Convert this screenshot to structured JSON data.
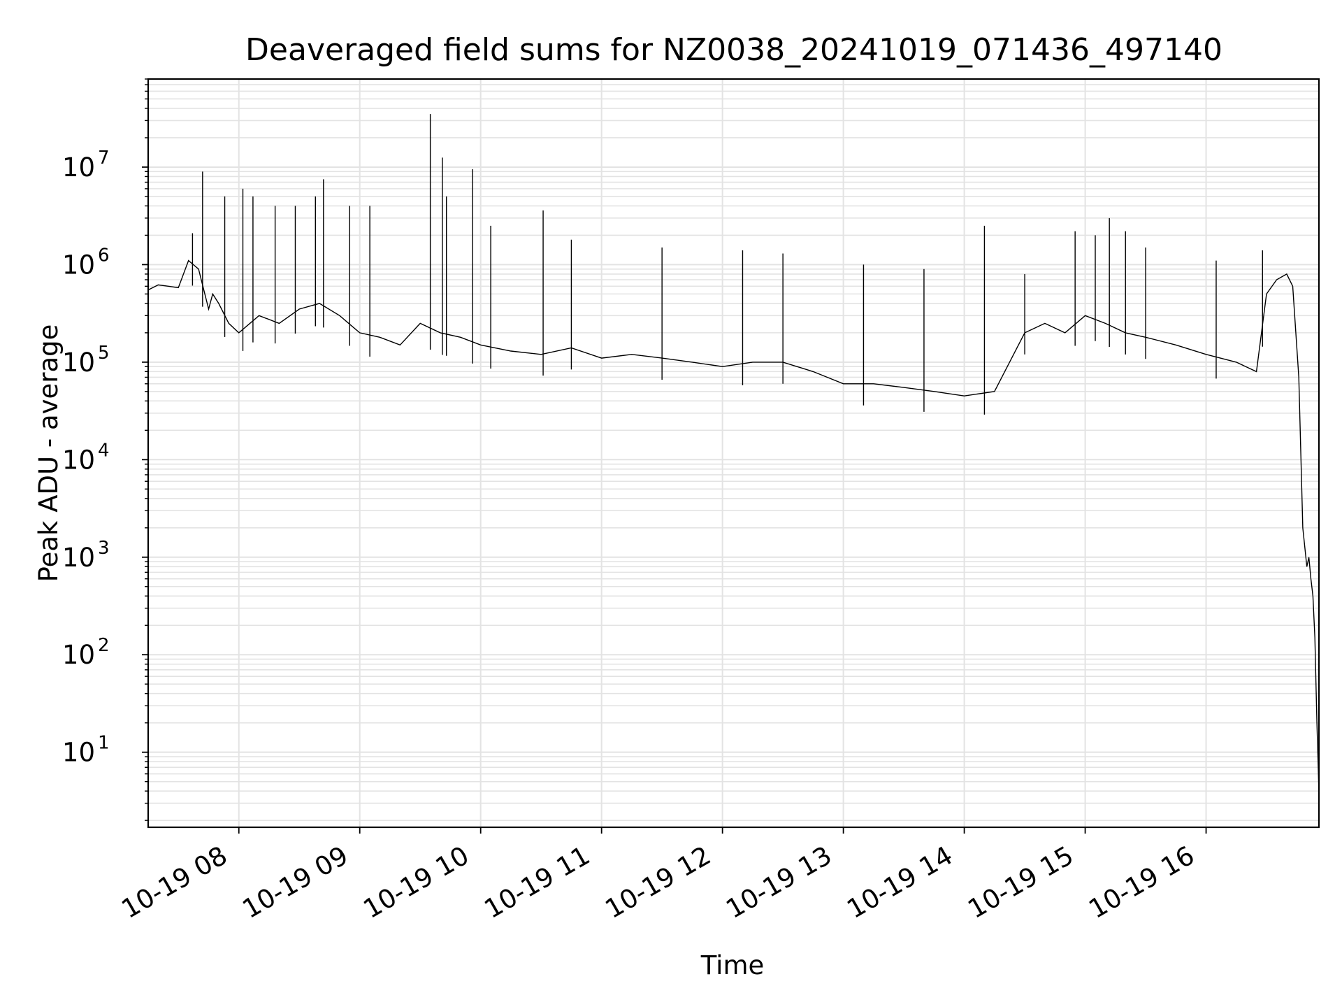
{
  "chart_data": {
    "type": "line",
    "title": "Deaveraged field sums for NZ0038_20241019_071436_497140",
    "xlabel": "Time",
    "ylabel": "Peak ADU - average",
    "y_scale": "log",
    "ylim": [
      1.7,
      80000000
    ],
    "xlim": [
      "2024-10-19 07:15",
      "2024-10-19 16:56"
    ],
    "grid": true,
    "series_color": "#000000",
    "x_ticks": [
      {
        "label": "10-19 08",
        "t": "2024-10-19 08:00"
      },
      {
        "label": "10-19 09",
        "t": "2024-10-19 09:00"
      },
      {
        "label": "10-19 10",
        "t": "2024-10-19 10:00"
      },
      {
        "label": "10-19 11",
        "t": "2024-10-19 11:00"
      },
      {
        "label": "10-19 12",
        "t": "2024-10-19 12:00"
      },
      {
        "label": "10-19 13",
        "t": "2024-10-19 13:00"
      },
      {
        "label": "10-19 14",
        "t": "2024-10-19 14:00"
      },
      {
        "label": "10-19 15",
        "t": "2024-10-19 15:00"
      },
      {
        "label": "10-19 16",
        "t": "2024-10-19 16:00"
      }
    ],
    "y_ticks": [
      {
        "base": "10",
        "exp": "1",
        "value": 10
      },
      {
        "base": "10",
        "exp": "2",
        "value": 100
      },
      {
        "base": "10",
        "exp": "3",
        "value": 1000
      },
      {
        "base": "10",
        "exp": "4",
        "value": 10000
      },
      {
        "base": "10",
        "exp": "5",
        "value": 100000
      },
      {
        "base": "10",
        "exp": "6",
        "value": 1000000
      },
      {
        "base": "10",
        "exp": "7",
        "value": 10000000
      }
    ],
    "series": [
      {
        "x": [
          "2024-10-19 07:15",
          "2024-10-19 07:20",
          "2024-10-19 07:25",
          "2024-10-19 07:30",
          "2024-10-19 07:35",
          "2024-10-19 07:40",
          "2024-10-19 07:45",
          "2024-10-19 07:47",
          "2024-10-19 07:50",
          "2024-10-19 07:55",
          "2024-10-19 08:00",
          "2024-10-19 08:10",
          "2024-10-19 08:20",
          "2024-10-19 08:30",
          "2024-10-19 08:40",
          "2024-10-19 08:50",
          "2024-10-19 09:00",
          "2024-10-19 09:10",
          "2024-10-19 09:20",
          "2024-10-19 09:30",
          "2024-10-19 09:40",
          "2024-10-19 09:50",
          "2024-10-19 10:00",
          "2024-10-19 10:15",
          "2024-10-19 10:30",
          "2024-10-19 10:45",
          "2024-10-19 11:00",
          "2024-10-19 11:15",
          "2024-10-19 11:30",
          "2024-10-19 11:45",
          "2024-10-19 12:00",
          "2024-10-19 12:15",
          "2024-10-19 12:30",
          "2024-10-19 12:45",
          "2024-10-19 13:00",
          "2024-10-19 13:15",
          "2024-10-19 13:30",
          "2024-10-19 13:45",
          "2024-10-19 14:00",
          "2024-10-19 14:15",
          "2024-10-19 14:30",
          "2024-10-19 14:40",
          "2024-10-19 14:50",
          "2024-10-19 15:00",
          "2024-10-19 15:10",
          "2024-10-19 15:20",
          "2024-10-19 15:30",
          "2024-10-19 15:45",
          "2024-10-19 16:00",
          "2024-10-19 16:15",
          "2024-10-19 16:25",
          "2024-10-19 16:30",
          "2024-10-19 16:35",
          "2024-10-19 16:40",
          "2024-10-19 16:43",
          "2024-10-19 16:46",
          "2024-10-19 16:48",
          "2024-10-19 16:50",
          "2024-10-19 16:51",
          "2024-10-19 16:52",
          "2024-10-19 16:53",
          "2024-10-19 16:54",
          "2024-10-19 16:55",
          "2024-10-19 16:56"
        ],
        "y": [
          550000,
          620000,
          600000,
          580000,
          1100000,
          900000,
          350000,
          500000,
          400000,
          250000,
          200000,
          300000,
          250000,
          350000,
          400000,
          300000,
          200000,
          180000,
          150000,
          250000,
          200000,
          180000,
          150000,
          130000,
          120000,
          140000,
          110000,
          120000,
          110000,
          100000,
          90000,
          100000,
          100000,
          80000,
          60000,
          60000,
          55000,
          50000,
          45000,
          50000,
          200000,
          250000,
          200000,
          300000,
          250000,
          200000,
          180000,
          150000,
          120000,
          100000,
          80000,
          500000,
          700000,
          800000,
          600000,
          70000,
          2000,
          800,
          1000,
          600,
          400,
          150,
          20,
          4
        ],
        "spikes": [
          {
            "t": "2024-10-19 07:37",
            "v": 2100000
          },
          {
            "t": "2024-10-19 07:42",
            "v": 9000000
          },
          {
            "t": "2024-10-19 07:53",
            "v": 5000000
          },
          {
            "t": "2024-10-19 08:02",
            "v": 6000000
          },
          {
            "t": "2024-10-19 08:07",
            "v": 5000000
          },
          {
            "t": "2024-10-19 08:18",
            "v": 4000000
          },
          {
            "t": "2024-10-19 08:28",
            "v": 4000000
          },
          {
            "t": "2024-10-19 08:38",
            "v": 5000000
          },
          {
            "t": "2024-10-19 08:42",
            "v": 7500000
          },
          {
            "t": "2024-10-19 08:55",
            "v": 4000000
          },
          {
            "t": "2024-10-19 09:05",
            "v": 4000000
          },
          {
            "t": "2024-10-19 09:35",
            "v": 35000000
          },
          {
            "t": "2024-10-19 09:41",
            "v": 12500000
          },
          {
            "t": "2024-10-19 09:43",
            "v": 5000000
          },
          {
            "t": "2024-10-19 09:56",
            "v": 9500000
          },
          {
            "t": "2024-10-19 10:05",
            "v": 2500000
          },
          {
            "t": "2024-10-19 10:31",
            "v": 3600000
          },
          {
            "t": "2024-10-19 10:45",
            "v": 1800000
          },
          {
            "t": "2024-10-19 11:30",
            "v": 1500000
          },
          {
            "t": "2024-10-19 12:10",
            "v": 1400000
          },
          {
            "t": "2024-10-19 12:30",
            "v": 1300000
          },
          {
            "t": "2024-10-19 13:10",
            "v": 1000000
          },
          {
            "t": "2024-10-19 13:40",
            "v": 900000
          },
          {
            "t": "2024-10-19 14:10",
            "v": 2500000
          },
          {
            "t": "2024-10-19 14:30",
            "v": 800000
          },
          {
            "t": "2024-10-19 14:55",
            "v": 2200000
          },
          {
            "t": "2024-10-19 15:05",
            "v": 2000000
          },
          {
            "t": "2024-10-19 15:12",
            "v": 3000000
          },
          {
            "t": "2024-10-19 15:20",
            "v": 2200000
          },
          {
            "t": "2024-10-19 15:30",
            "v": 1500000
          },
          {
            "t": "2024-10-19 16:05",
            "v": 1100000
          },
          {
            "t": "2024-10-19 16:28",
            "v": 1400000
          }
        ]
      }
    ]
  }
}
